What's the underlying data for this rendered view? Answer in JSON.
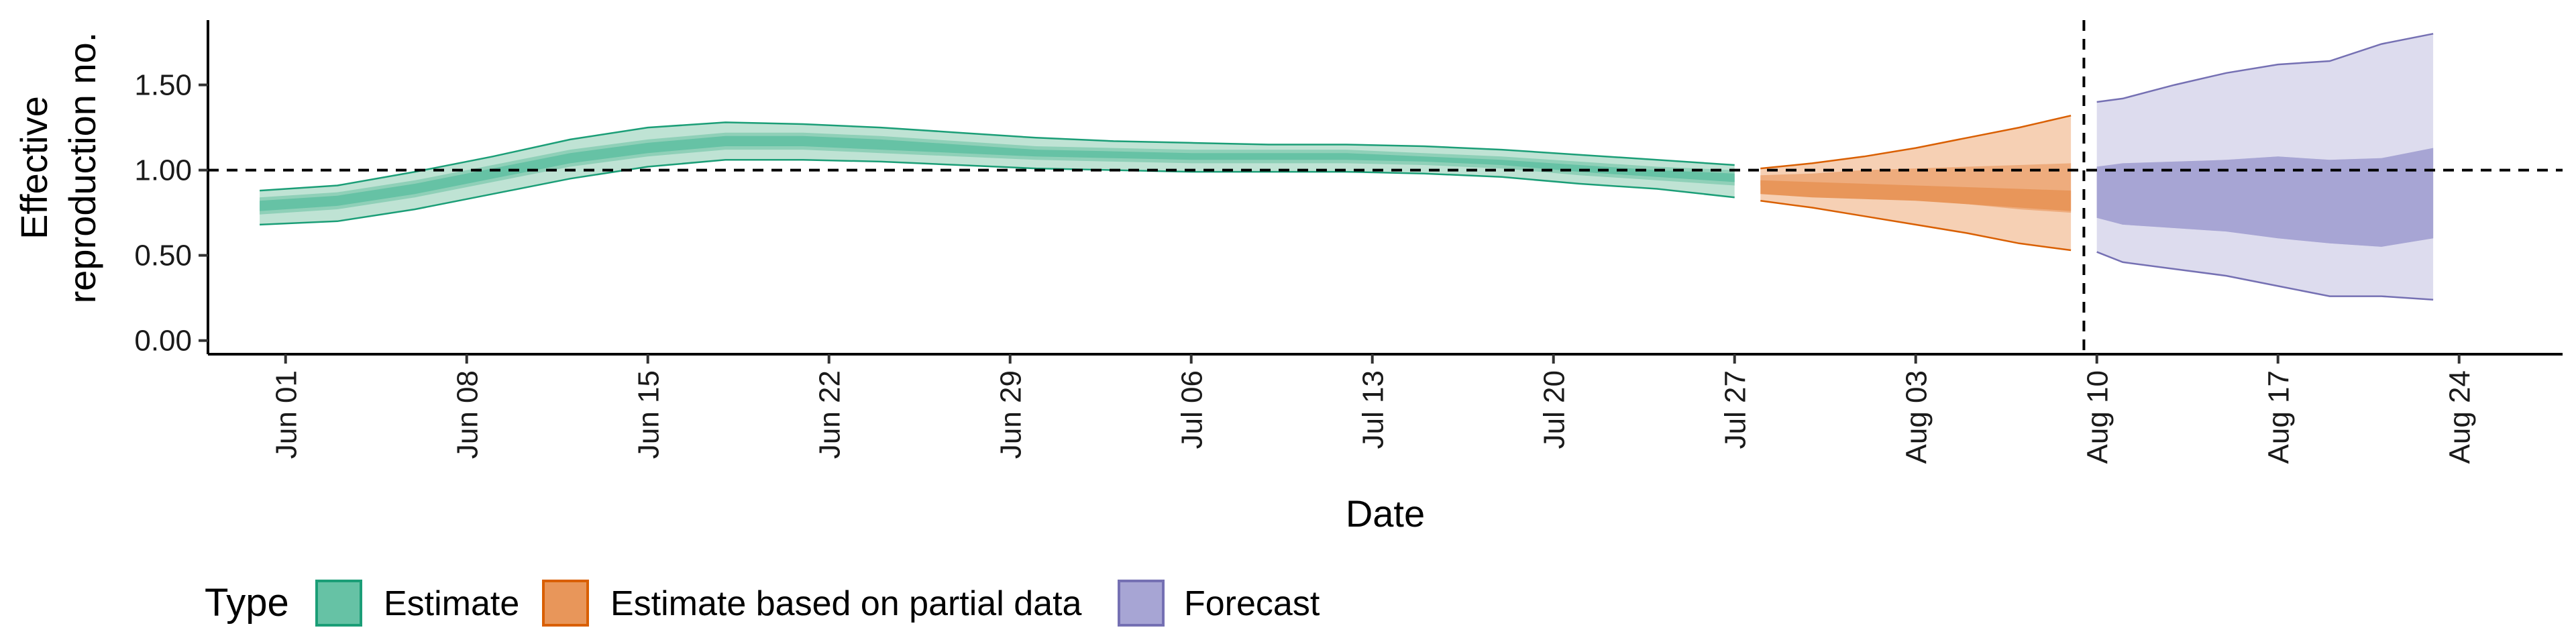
{
  "chart_data": {
    "type": "area",
    "xlabel": "Date",
    "ylabel_lines": [
      "Effective",
      "reproduction no."
    ],
    "yticks": [
      0,
      0.5,
      1,
      1.5
    ],
    "ytick_labels": [
      "0.00",
      "0.50",
      "1.00",
      "1.50"
    ],
    "ylim": [
      -0.08,
      1.88
    ],
    "xlim": [
      "2020-05-29",
      "2020-08-28"
    ],
    "xticks": [
      "2020-06-01",
      "2020-06-08",
      "2020-06-15",
      "2020-06-22",
      "2020-06-29",
      "2020-07-06",
      "2020-07-13",
      "2020-07-20",
      "2020-07-27",
      "2020-08-03",
      "2020-08-10",
      "2020-08-17",
      "2020-08-24"
    ],
    "xtick_labels": [
      "Jun 01",
      "Jun 08",
      "Jun 15",
      "Jun 22",
      "Jun 29",
      "Jul 06",
      "Jul 13",
      "Jul 20",
      "Jul 27",
      "Aug 03",
      "Aug 10",
      "Aug 17",
      "Aug 24"
    ],
    "hline": 1.0,
    "vline": "2020-08-09",
    "legend": {
      "title": "Type",
      "position": "bottom-left",
      "entries": [
        {
          "label": "Estimate",
          "fill": "#66c2a5",
          "stroke": "#1b9e77"
        },
        {
          "label": "Estimate based on partial data",
          "fill": "#e8965a",
          "stroke": "#d95f02"
        },
        {
          "label": "Forecast",
          "fill": "#a7a5d4",
          "stroke": "#7570b3"
        }
      ]
    },
    "series": [
      {
        "name": "Estimate",
        "color": "#1b9e77",
        "outer_fill": "#bfe3d4",
        "mid_fill": "#8fd0b8",
        "inner_fill": "#66c2a5",
        "x": [
          "2020-05-31",
          "2020-06-03",
          "2020-06-06",
          "2020-06-09",
          "2020-06-12",
          "2020-06-15",
          "2020-06-18",
          "2020-06-21",
          "2020-06-24",
          "2020-06-27",
          "2020-06-30",
          "2020-07-03",
          "2020-07-06",
          "2020-07-09",
          "2020-07-12",
          "2020-07-15",
          "2020-07-18",
          "2020-07-21",
          "2020-07-24",
          "2020-07-27"
        ],
        "lower90": [
          0.68,
          0.7,
          0.77,
          0.86,
          0.95,
          1.02,
          1.06,
          1.06,
          1.05,
          1.03,
          1.01,
          1.0,
          0.99,
          0.99,
          0.99,
          0.98,
          0.96,
          0.92,
          0.89,
          0.84
        ],
        "lower50": [
          0.74,
          0.77,
          0.84,
          0.93,
          1.02,
          1.08,
          1.12,
          1.12,
          1.1,
          1.08,
          1.06,
          1.05,
          1.04,
          1.04,
          1.04,
          1.03,
          1.01,
          0.97,
          0.94,
          0.91
        ],
        "lower20": [
          0.76,
          0.79,
          0.86,
          0.95,
          1.04,
          1.1,
          1.14,
          1.14,
          1.12,
          1.1,
          1.08,
          1.07,
          1.06,
          1.06,
          1.06,
          1.05,
          1.03,
          0.99,
          0.96,
          0.93
        ],
        "upper20": [
          0.82,
          0.85,
          0.92,
          1.01,
          1.1,
          1.16,
          1.2,
          1.2,
          1.18,
          1.15,
          1.12,
          1.11,
          1.1,
          1.1,
          1.1,
          1.08,
          1.06,
          1.03,
          1.0,
          0.98
        ],
        "upper50": [
          0.84,
          0.87,
          0.94,
          1.03,
          1.12,
          1.18,
          1.22,
          1.22,
          1.2,
          1.17,
          1.14,
          1.13,
          1.12,
          1.12,
          1.12,
          1.1,
          1.08,
          1.05,
          1.02,
          1.0
        ],
        "upper90": [
          0.88,
          0.91,
          0.99,
          1.08,
          1.18,
          1.25,
          1.28,
          1.27,
          1.25,
          1.22,
          1.19,
          1.17,
          1.16,
          1.15,
          1.15,
          1.14,
          1.12,
          1.09,
          1.06,
          1.03
        ]
      },
      {
        "name": "Estimate based on partial data",
        "color": "#d95f02",
        "outer_fill": "#f6d0b4",
        "mid_fill": "#eeac7d",
        "inner_fill": "#e8965a",
        "x": [
          "2020-07-28",
          "2020-07-30",
          "2020-08-01",
          "2020-08-03",
          "2020-08-05",
          "2020-08-07",
          "2020-08-09"
        ],
        "lower90": [
          0.82,
          0.78,
          0.73,
          0.68,
          0.63,
          0.57,
          0.53
        ],
        "lower50": [
          0.91,
          0.89,
          0.87,
          0.84,
          0.8,
          0.77,
          0.75
        ],
        "lower20": [
          0.86,
          0.84,
          0.83,
          0.82,
          0.8,
          0.78,
          0.76
        ],
        "upper20": [
          0.94,
          0.93,
          0.92,
          0.91,
          0.9,
          0.89,
          0.88
        ],
        "upper50": [
          0.97,
          0.98,
          1.0,
          1.01,
          1.02,
          1.03,
          1.04
        ],
        "upper90": [
          1.01,
          1.04,
          1.08,
          1.13,
          1.19,
          1.25,
          1.32
        ]
      },
      {
        "name": "Forecast",
        "color": "#7570b3",
        "outer_fill": "#dddcee",
        "mid_fill": "#c4c2e2",
        "inner_fill": "#a7a5d4",
        "x": [
          "2020-08-10",
          "2020-08-11",
          "2020-08-13",
          "2020-08-15",
          "2020-08-17",
          "2020-08-19",
          "2020-08-21",
          "2020-08-23"
        ],
        "lower90": [
          0.52,
          0.46,
          0.42,
          0.38,
          0.32,
          0.26,
          0.26,
          0.24
        ],
        "lower50": [
          0.72,
          0.68,
          0.66,
          0.64,
          0.6,
          0.57,
          0.55,
          0.6
        ],
        "lower20": [
          0.72,
          0.68,
          0.66,
          0.64,
          0.6,
          0.57,
          0.55,
          0.6
        ],
        "upper20": [
          1.02,
          1.04,
          1.05,
          1.06,
          1.08,
          1.06,
          1.07,
          1.13
        ],
        "upper50": [
          1.02,
          1.04,
          1.05,
          1.06,
          1.08,
          1.06,
          1.07,
          1.13
        ],
        "upper90": [
          1.4,
          1.42,
          1.5,
          1.57,
          1.62,
          1.64,
          1.74,
          1.8
        ]
      }
    ]
  }
}
